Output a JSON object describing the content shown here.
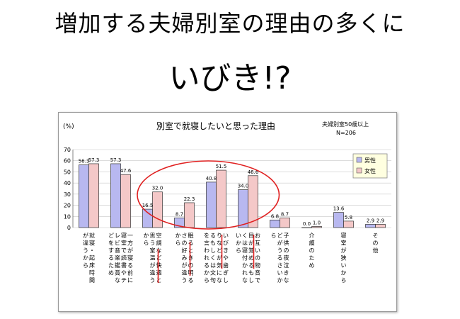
{
  "slide": {
    "headline": "増加する夫婦別室の理由の多くに",
    "subhead": "いびき!?"
  },
  "chart_data": {
    "type": "bar",
    "title": "別室で就寝したいと思った理由",
    "unit_label": "(%)",
    "note_line1": "夫婦別室50歳以上",
    "note_line2": "N=206",
    "ylim": [
      0,
      70
    ],
    "yticks": [
      0,
      10,
      20,
      30,
      40,
      50,
      60,
      70
    ],
    "categories": [
      "就寝・起床時間が違うから",
      "一方が寝る前に寝室で読書やテレビ音楽鑑賞などをするため",
      "空調など快適と思う室温が違うから",
      "眠るときの明るさの好みが違うから",
      "いびきや歯ぎしりなどが気になるもしくは文句を言われるから",
      "お互いの物音で目が覚めるもしくは寝付かれないから",
      "子供の夜泣きなどがうるさいから",
      "介護のため",
      "寝室が狭いから",
      "その他"
    ],
    "series": [
      {
        "name": "男性",
        "color": "#b8b8f0",
        "values": [
          56.3,
          57.3,
          16.5,
          8.7,
          40.8,
          34.0,
          6.8,
          0.0,
          13.6,
          2.9
        ]
      },
      {
        "name": "女性",
        "color": "#f4c8c8",
        "values": [
          57.3,
          47.6,
          32.0,
          22.3,
          51.5,
          46.6,
          8.7,
          1.0,
          5.8,
          2.9
        ]
      }
    ],
    "highlight_ellipse": "around categories 3–6",
    "underlined_text": [
      "快適",
      "明るさ",
      "いびきや歯ぎしり",
      "物音"
    ]
  }
}
